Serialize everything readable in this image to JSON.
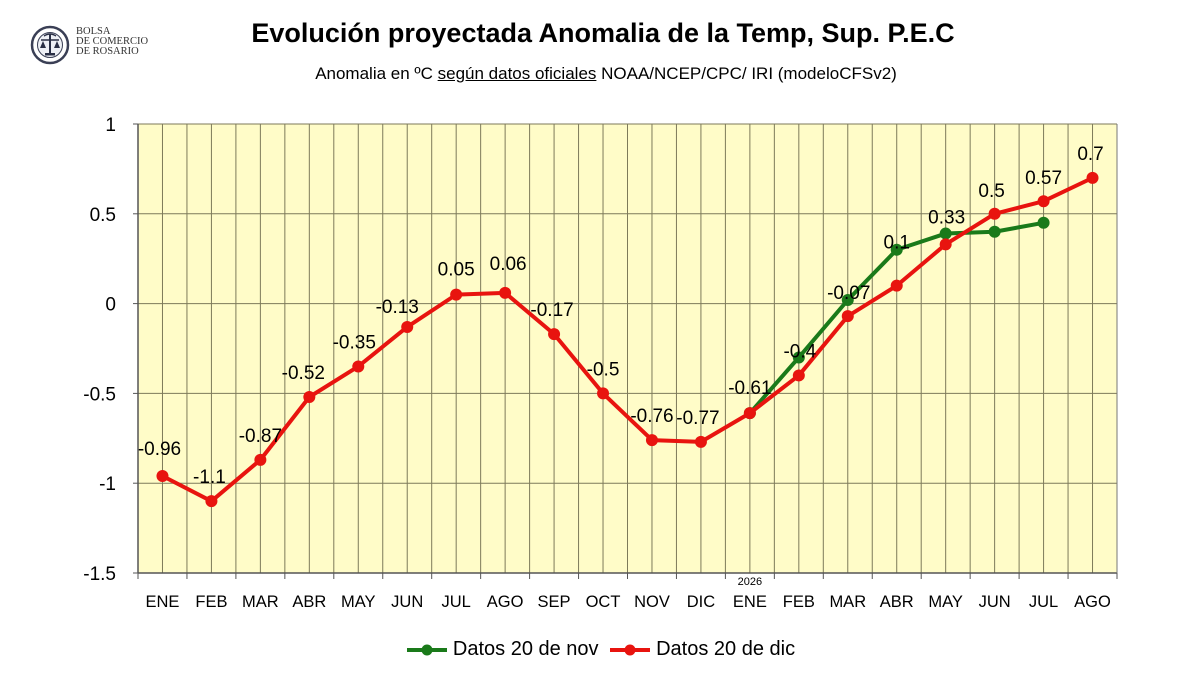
{
  "logo": {
    "lines": [
      "BOLSA",
      "DE COMERCIO",
      "DE ROSARIO"
    ],
    "seal_text": "BOLSA DE COMERCIO DE ROSARIO"
  },
  "header": {
    "title": "Evolución proyectada Anomalia de la Temp, Sup.  P.E.C",
    "subtitle_prefix": "Anomalia en ºC ",
    "subtitle_underlined": "según datos oficiales",
    "subtitle_suffix": " NOAA/NCEP/CPC/ IRI (modeloCFSv2)"
  },
  "chart_data": {
    "type": "line",
    "title": "Evolución proyectada Anomalia de la Temp, Sup.  P.E.C",
    "subtitle": "Anomalia en ºC según datos oficiales NOAA/NCEP/CPC/ IRI (modeloCFSv2)",
    "xlabel": "",
    "ylabel": "",
    "categories": [
      "ENE",
      "FEB",
      "MAR",
      "ABR",
      "MAY",
      "JUN",
      "JUL",
      "AGO",
      "SEP",
      "OCT",
      "NOV",
      "DIC",
      "ENE",
      "FEB",
      "MAR",
      "ABR",
      "MAY",
      "JUN",
      "JUL",
      "AGO"
    ],
    "year_marker": {
      "label": "2026",
      "category_index": 12
    },
    "ylim": [
      -1.5,
      1
    ],
    "yticks": [
      1,
      0.5,
      0,
      -0.5,
      -1,
      -1.5
    ],
    "ytick_labels": [
      "1",
      "0.5",
      "0",
      "-0.5",
      "-1",
      "-1.5"
    ],
    "grid": true,
    "legend_position": "bottom",
    "series": [
      {
        "name": "Datos 20 de nov",
        "color": "#1a7a1a",
        "values": [
          null,
          null,
          null,
          null,
          null,
          null,
          null,
          null,
          null,
          null,
          null,
          null,
          -0.61,
          -0.3,
          0.02,
          0.3,
          0.39,
          0.4,
          0.45,
          null
        ]
      },
      {
        "name": "Datos 20 de dic",
        "color": "#e8140f",
        "values": [
          -0.96,
          -1.1,
          -0.87,
          -0.52,
          -0.35,
          -0.13,
          0.05,
          0.06,
          -0.17,
          -0.5,
          -0.76,
          -0.77,
          -0.61,
          -0.4,
          -0.07,
          0.1,
          0.33,
          0.5,
          0.57,
          0.7
        ],
        "data_labels": [
          "-0.96",
          "-1.1",
          "-0.87",
          "-0.52",
          "-0.35",
          "-0.13",
          "0.05",
          "0.06",
          "-0.17",
          "-0.5",
          "-0.76",
          "-0.77",
          "-0.61",
          "-0.4",
          "-0.07",
          "0.1",
          "0.33",
          "0.5",
          "0.57",
          "0.7"
        ]
      }
    ],
    "plot_background": "#fffcc8",
    "grid_color": "#7d7a5a"
  }
}
